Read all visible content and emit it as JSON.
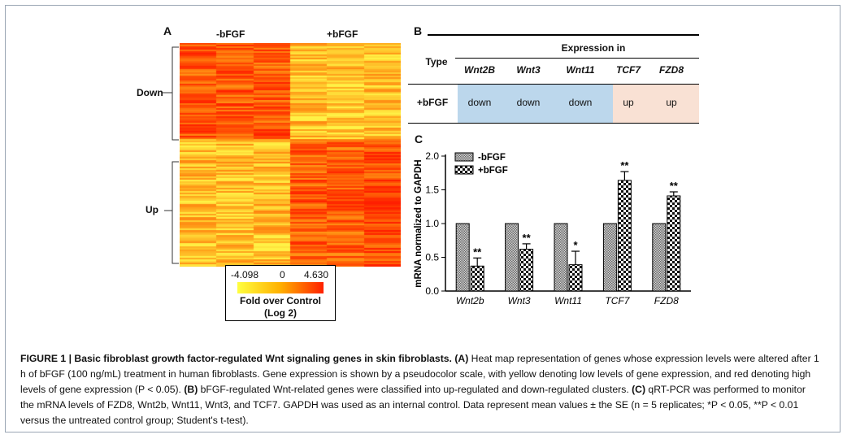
{
  "panel_a": {
    "letter": "A",
    "group_labels": [
      "-bFGF",
      "+bFGF"
    ],
    "row_labels": [
      "Down",
      "Up"
    ],
    "colorbar": {
      "min_label": "-4.098",
      "mid_label": "0",
      "max_label": "4.630",
      "title_line1": "Fold over Control",
      "title_line2": "(Log 2)",
      "low_color": "#ffff40",
      "high_color": "#ff2000"
    }
  },
  "panel_b": {
    "letter": "B",
    "type_header": "Type",
    "expression_header": "Expression in",
    "genes": [
      "Wnt2B",
      "Wnt3",
      "Wnt11",
      "TCF7",
      "FZD8"
    ],
    "row_label": "+bFGF",
    "values": [
      "down",
      "down",
      "down",
      "up",
      "up"
    ],
    "down_color": "#bcd7ec",
    "up_color": "#f9e1d4"
  },
  "panel_c": {
    "letter": "C",
    "chart_data": {
      "type": "bar",
      "categories": [
        "Wnt2b",
        "Wnt3",
        "Wnt11",
        "TCF7",
        "FZD8"
      ],
      "series": [
        {
          "name": "-bFGF",
          "values": [
            1.0,
            1.0,
            1.0,
            1.0,
            1.0
          ],
          "errors": [
            0,
            0,
            0,
            0,
            0
          ]
        },
        {
          "name": "+bFGF",
          "values": [
            0.37,
            0.62,
            0.39,
            1.64,
            1.41
          ],
          "errors": [
            0.12,
            0.08,
            0.2,
            0.13,
            0.06
          ]
        }
      ],
      "significance": [
        "**",
        "**",
        "*",
        "**",
        "**"
      ],
      "ylabel": "mRNA normalized to GAPDH",
      "ylim": [
        0,
        2.0
      ],
      "yticks": [
        "0.0",
        "0.5",
        "1.0",
        "1.5",
        "2.0"
      ],
      "legend": "top-left"
    }
  },
  "caption": {
    "title": "FIGURE 1 | Basic fibroblast growth factor-regulated Wnt signaling genes in skin fibroblasts.",
    "part_a_label": "(A)",
    "part_a_text": "Heat map representation of genes whose expression levels were altered after 1 h of bFGF (100 ng/mL) treatment in human fibroblasts. Gene expression is shown by a pseudocolor scale, with yellow denoting low levels of gene expression, and red denoting high levels of gene expression (P < 0.05).",
    "part_b_label": "(B)",
    "part_b_text": "bFGF-regulated Wnt-related genes were classified into up-regulated and down-regulated clusters.",
    "part_c_label": "(C)",
    "part_c_text": "qRT-PCR was performed to monitor the mRNA levels of FZD8, Wnt2b, Wnt11, Wnt3, and TCF7. GAPDH was used as an internal control. Data represent mean values ± the SE (n = 5 replicates; *P < 0.05, **P < 0.01 versus the untreated control group; Student's t-test)."
  }
}
